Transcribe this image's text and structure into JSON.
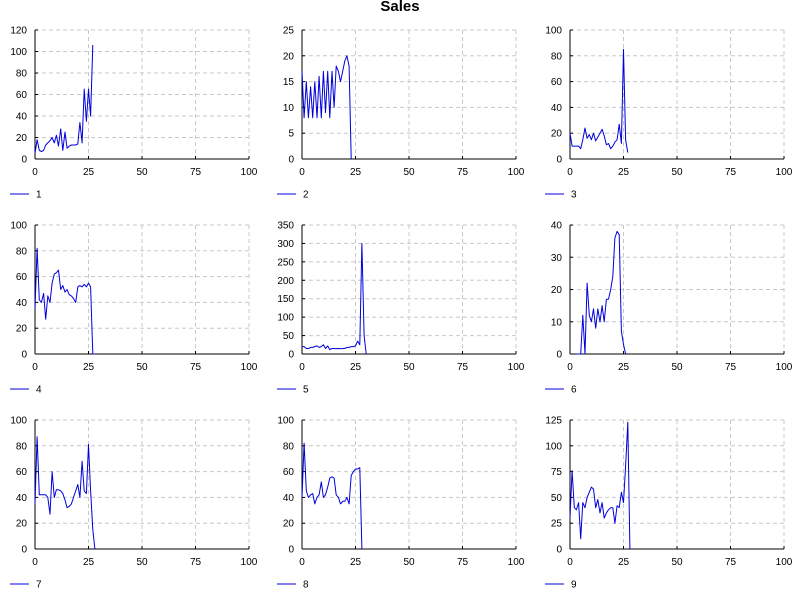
{
  "title": "Sales",
  "colors": {
    "series": "#0000dd",
    "grid": "#c8c8c8",
    "axis": "#000000",
    "background": "#ffffff"
  },
  "chart_data": [
    {
      "type": "line",
      "legend": "1",
      "xlim": [
        0,
        100
      ],
      "ylim": [
        0,
        120
      ],
      "xticks": [
        0,
        25,
        50,
        75,
        100
      ],
      "yticks": [
        0,
        20,
        40,
        60,
        80,
        100,
        120
      ],
      "series": [
        {
          "name": "1",
          "x": [
            0,
            1,
            2,
            3,
            4,
            5,
            6,
            7,
            8,
            9,
            10,
            11,
            12,
            13,
            14,
            15,
            16,
            17,
            18,
            19,
            20,
            21,
            22,
            23,
            24,
            25,
            26,
            27
          ],
          "y": [
            5,
            18,
            8,
            7,
            8,
            13,
            15,
            17,
            20,
            15,
            22,
            12,
            28,
            8,
            25,
            10,
            12,
            13,
            13,
            13,
            14,
            34,
            15,
            65,
            35,
            65,
            40,
            106
          ]
        }
      ]
    },
    {
      "type": "line",
      "legend": "2",
      "xlim": [
        0,
        100
      ],
      "ylim": [
        0,
        25
      ],
      "xticks": [
        0,
        25,
        50,
        75,
        100
      ],
      "yticks": [
        0,
        5,
        10,
        15,
        20,
        25
      ],
      "series": [
        {
          "name": "2",
          "x": [
            0,
            1,
            2,
            3,
            4,
            5,
            6,
            7,
            8,
            9,
            10,
            11,
            12,
            13,
            14,
            15,
            16,
            17,
            18,
            19,
            20,
            21,
            22,
            23
          ],
          "y": [
            17,
            8,
            15,
            8,
            14,
            8,
            15,
            8,
            16,
            8,
            17,
            9,
            17,
            8,
            17,
            10,
            18,
            17,
            15,
            17,
            19,
            20,
            18,
            0
          ]
        }
      ]
    },
    {
      "type": "line",
      "legend": "3",
      "xlim": [
        0,
        100
      ],
      "ylim": [
        0,
        100
      ],
      "xticks": [
        0,
        25,
        50,
        75,
        100
      ],
      "yticks": [
        0,
        20,
        40,
        60,
        80,
        100
      ],
      "series": [
        {
          "name": "3",
          "x": [
            0,
            1,
            2,
            3,
            4,
            5,
            6,
            7,
            8,
            9,
            10,
            11,
            12,
            13,
            14,
            15,
            16,
            17,
            18,
            19,
            20,
            21,
            22,
            23,
            24,
            25,
            26,
            27
          ],
          "y": [
            20,
            10,
            10,
            10,
            10,
            8,
            15,
            24,
            16,
            19,
            15,
            20,
            14,
            17,
            20,
            23,
            18,
            11,
            12,
            8,
            10,
            13,
            15,
            27,
            12,
            85,
            15,
            5
          ]
        }
      ]
    },
    {
      "type": "line",
      "legend": "4",
      "xlim": [
        0,
        100
      ],
      "ylim": [
        0,
        100
      ],
      "xticks": [
        0,
        25,
        50,
        75,
        100
      ],
      "yticks": [
        0,
        20,
        40,
        60,
        80,
        100
      ],
      "series": [
        {
          "name": "4",
          "x": [
            0,
            1,
            2,
            3,
            4,
            5,
            6,
            7,
            8,
            9,
            10,
            11,
            12,
            13,
            14,
            15,
            16,
            17,
            18,
            19,
            20,
            21,
            22,
            23,
            24,
            25,
            26,
            27,
            28
          ],
          "y": [
            35,
            82,
            42,
            40,
            47,
            27,
            45,
            40,
            55,
            62,
            63,
            65,
            50,
            53,
            48,
            50,
            46,
            45,
            43,
            40,
            52,
            53,
            52,
            54,
            52,
            55,
            52,
            0,
            0
          ]
        }
      ]
    },
    {
      "type": "line",
      "legend": "5",
      "xlim": [
        0,
        100
      ],
      "ylim": [
        0,
        350
      ],
      "xticks": [
        0,
        25,
        50,
        75,
        100
      ],
      "yticks": [
        0,
        50,
        100,
        150,
        200,
        250,
        300,
        350
      ],
      "series": [
        {
          "name": "5",
          "x": [
            0,
            1,
            2,
            3,
            4,
            5,
            6,
            7,
            8,
            9,
            10,
            11,
            12,
            13,
            14,
            15,
            16,
            17,
            18,
            19,
            20,
            21,
            22,
            23,
            24,
            25,
            26,
            27,
            28,
            29,
            30
          ],
          "y": [
            20,
            20,
            15,
            15,
            18,
            18,
            20,
            22,
            18,
            20,
            25,
            15,
            22,
            12,
            15,
            15,
            14,
            15,
            14,
            15,
            15,
            18,
            18,
            20,
            20,
            22,
            35,
            25,
            300,
            50,
            0
          ]
        }
      ]
    },
    {
      "type": "line",
      "legend": "6",
      "xlim": [
        0,
        100
      ],
      "ylim": [
        0,
        40
      ],
      "xticks": [
        0,
        25,
        50,
        75,
        100
      ],
      "yticks": [
        0,
        10,
        20,
        30,
        40
      ],
      "series": [
        {
          "name": "6",
          "x": [
            3,
            4,
            5,
            6,
            7,
            8,
            9,
            10,
            11,
            12,
            13,
            14,
            15,
            16,
            17,
            18,
            19,
            20,
            21,
            22,
            23,
            24,
            25,
            26
          ],
          "y": [
            0,
            0,
            0,
            12,
            0,
            22,
            12,
            10,
            14,
            8,
            14,
            10,
            15,
            10,
            17,
            17,
            20,
            24,
            36,
            38,
            37,
            7,
            3,
            0
          ]
        }
      ]
    },
    {
      "type": "line",
      "legend": "7",
      "xlim": [
        0,
        100
      ],
      "ylim": [
        0,
        100
      ],
      "xticks": [
        0,
        25,
        50,
        75,
        100
      ],
      "yticks": [
        0,
        20,
        40,
        60,
        80,
        100
      ],
      "series": [
        {
          "name": "7",
          "x": [
            0,
            1,
            2,
            3,
            4,
            5,
            6,
            7,
            8,
            9,
            10,
            11,
            12,
            13,
            14,
            15,
            16,
            17,
            18,
            19,
            20,
            21,
            22,
            23,
            24,
            25,
            26,
            27,
            28
          ],
          "y": [
            35,
            87,
            42,
            42,
            42,
            42,
            40,
            27,
            60,
            40,
            46,
            46,
            45,
            43,
            38,
            32,
            33,
            35,
            40,
            45,
            50,
            40,
            68,
            45,
            43,
            81,
            45,
            15,
            0
          ]
        }
      ]
    },
    {
      "type": "line",
      "legend": "8",
      "xlim": [
        0,
        100
      ],
      "ylim": [
        0,
        100
      ],
      "xticks": [
        0,
        25,
        50,
        75,
        100
      ],
      "yticks": [
        0,
        20,
        40,
        60,
        80,
        100
      ],
      "series": [
        {
          "name": "8",
          "x": [
            0,
            1,
            2,
            3,
            4,
            5,
            6,
            7,
            8,
            9,
            10,
            11,
            12,
            13,
            14,
            15,
            16,
            17,
            18,
            19,
            20,
            21,
            22,
            23,
            24,
            25,
            26,
            27,
            28
          ],
          "y": [
            40,
            82,
            45,
            40,
            42,
            43,
            35,
            40,
            42,
            52,
            40,
            42,
            48,
            55,
            56,
            55,
            42,
            40,
            35,
            37,
            37,
            40,
            35,
            57,
            60,
            62,
            62,
            63,
            0
          ]
        }
      ]
    },
    {
      "type": "line",
      "legend": "9",
      "xlim": [
        0,
        100
      ],
      "ylim": [
        0,
        125
      ],
      "xticks": [
        0,
        25,
        50,
        75,
        100
      ],
      "yticks": [
        0,
        25,
        50,
        75,
        100,
        125
      ],
      "series": [
        {
          "name": "9",
          "x": [
            0,
            1,
            2,
            3,
            4,
            5,
            6,
            7,
            8,
            9,
            10,
            11,
            12,
            13,
            14,
            15,
            16,
            17,
            18,
            19,
            20,
            21,
            22,
            23,
            24,
            25,
            26,
            27,
            28
          ],
          "y": [
            30,
            76,
            40,
            38,
            45,
            10,
            45,
            40,
            50,
            55,
            60,
            58,
            40,
            48,
            35,
            45,
            30,
            35,
            38,
            40,
            40,
            25,
            42,
            40,
            55,
            45,
            80,
            123,
            0
          ]
        }
      ]
    }
  ]
}
